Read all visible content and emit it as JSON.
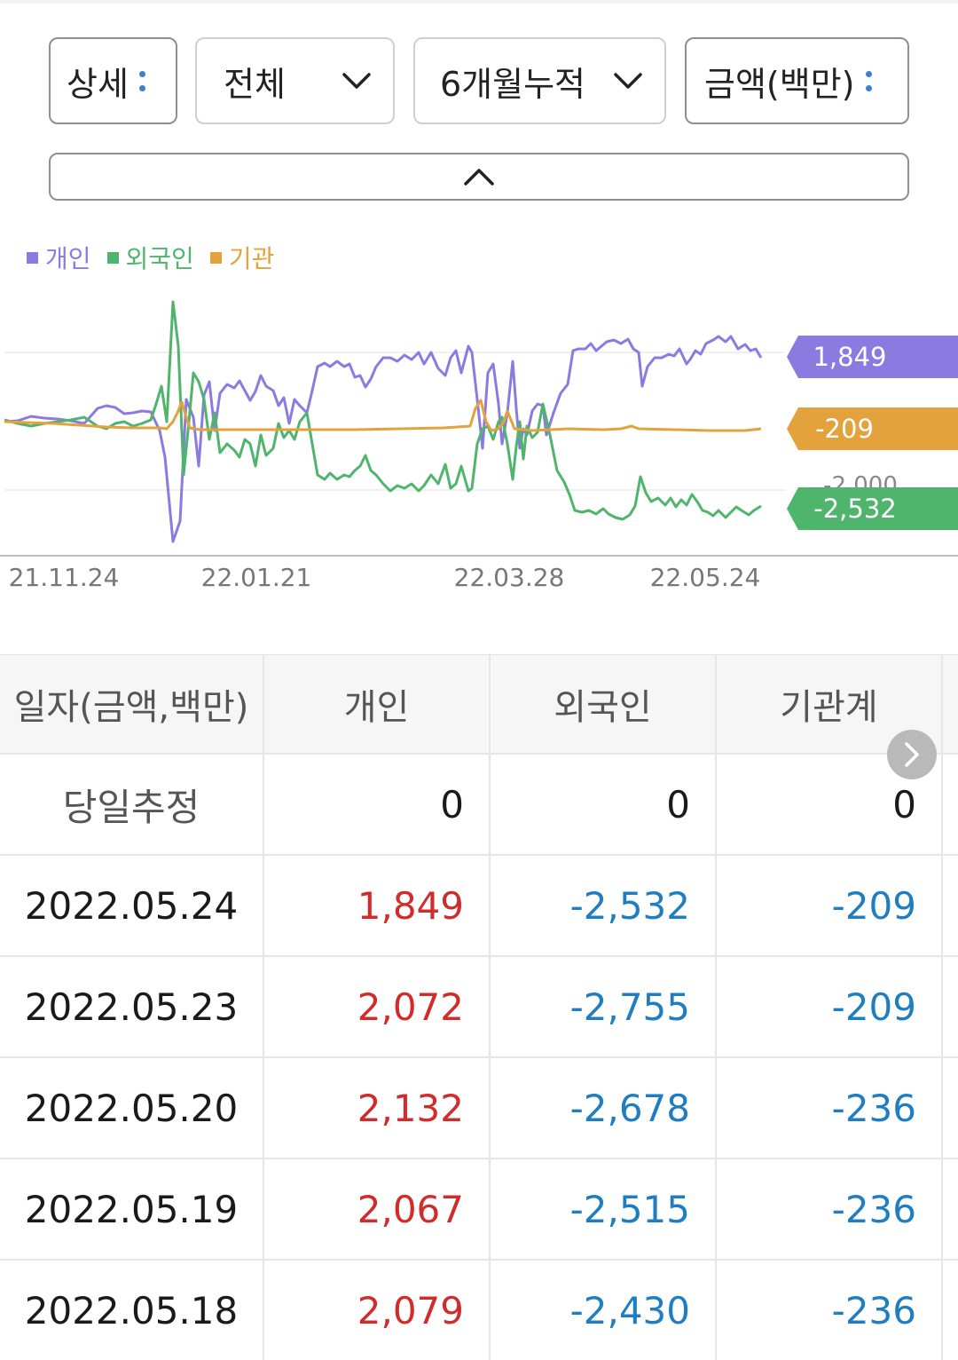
{
  "filters": {
    "view": "상세",
    "market": "전체",
    "period": "6개월누적",
    "unit": "금액(백만)"
  },
  "legend": [
    {
      "label": "개인",
      "color": "#8b7be0"
    },
    {
      "label": "외국인",
      "color": "#4fb56c"
    },
    {
      "label": "기관",
      "color": "#e4a23c"
    }
  ],
  "chart_data": {
    "type": "line",
    "x_ticks": [
      "21.11.24",
      "22.01.21",
      "22.03.28",
      "22.05.24"
    ],
    "y_ref_label": "-2,000",
    "series": [
      {
        "name": "개인",
        "color": "#8b7be0",
        "last_label": "1,849"
      },
      {
        "name": "기관",
        "color": "#e4a23c",
        "last_label": "-209"
      },
      {
        "name": "외국인",
        "color": "#4fb56c",
        "last_label": "-2,532"
      }
    ]
  },
  "table": {
    "headers": [
      "일자(금액,백만)",
      "개인",
      "외국인",
      "기관계"
    ],
    "estimate_row": {
      "label": "당일추정",
      "individual": "0",
      "foreign": "0",
      "institution": "0"
    },
    "rows": [
      {
        "date": "2022.05.24",
        "individual": "1,849",
        "foreign": "-2,532",
        "institution": "-209"
      },
      {
        "date": "2022.05.23",
        "individual": "2,072",
        "foreign": "-2,755",
        "institution": "-209"
      },
      {
        "date": "2022.05.20",
        "individual": "2,132",
        "foreign": "-2,678",
        "institution": "-236"
      },
      {
        "date": "2022.05.19",
        "individual": "2,067",
        "foreign": "-2,515",
        "institution": "-236"
      },
      {
        "date": "2022.05.18",
        "individual": "2,079",
        "foreign": "-2,430",
        "institution": "-236"
      }
    ]
  },
  "icons": {
    "collapse": "chevron-up-icon",
    "dropdown": "chevron-down-icon",
    "more": "kebab-icon",
    "scroll": "chevron-right-icon"
  }
}
